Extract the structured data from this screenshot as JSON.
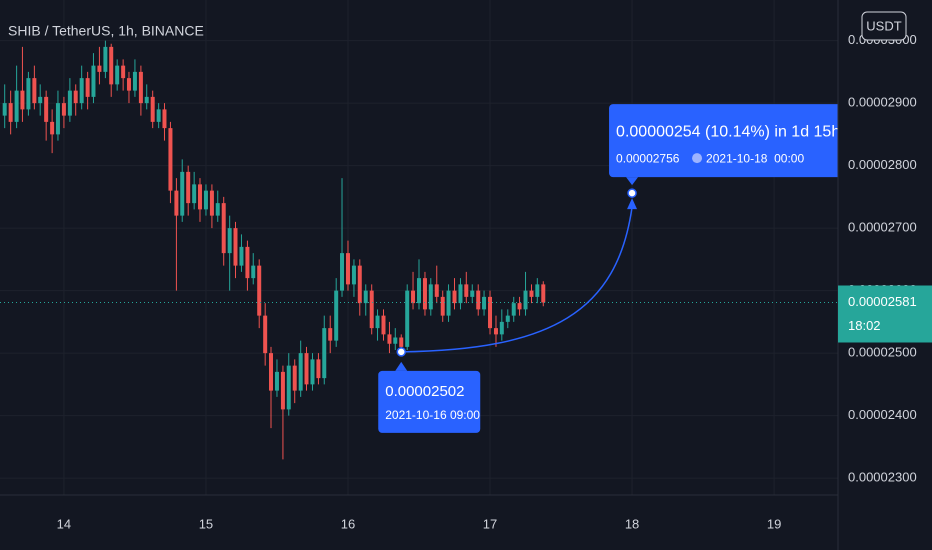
{
  "chart_data": {
    "type": "candlestick",
    "title": "SHIB / TetherUS, 1h, BINANCE",
    "currency_button": "USDT",
    "colors": {
      "up": "#26a69a",
      "down": "#ef5350",
      "measure": "#2962ff"
    },
    "grid": true,
    "xlim": [
      13.55,
      19.45
    ],
    "xticks": [
      14,
      15,
      16,
      17,
      18,
      19
    ],
    "ylim": [
      2.273e-05,
      3.065e-05
    ],
    "yticks": [
      {
        "value": 2.3e-05,
        "label": "0.00002300"
      },
      {
        "value": 2.4e-05,
        "label": "0.00002400"
      },
      {
        "value": 2.5e-05,
        "label": "0.00002500"
      },
      {
        "value": 2.6e-05,
        "label": "0.00002600"
      },
      {
        "value": 2.7e-05,
        "label": "0.00002700"
      },
      {
        "value": 2.8e-05,
        "label": "0.00002800"
      },
      {
        "value": 2.9e-05,
        "label": "0.00002900"
      },
      {
        "value": 3e-05,
        "label": "0.00003000"
      }
    ],
    "x": [
      13.583,
      13.625,
      13.667,
      13.708,
      13.75,
      13.792,
      13.833,
      13.875,
      13.917,
      13.958,
      14,
      14.042,
      14.083,
      14.125,
      14.167,
      14.208,
      14.25,
      14.292,
      14.333,
      14.375,
      14.417,
      14.458,
      14.5,
      14.542,
      14.583,
      14.625,
      14.667,
      14.708,
      14.75,
      14.792,
      14.833,
      14.875,
      14.917,
      14.958,
      15,
      15.042,
      15.083,
      15.125,
      15.167,
      15.208,
      15.25,
      15.292,
      15.333,
      15.375,
      15.417,
      15.458,
      15.5,
      15.542,
      15.583,
      15.625,
      15.667,
      15.708,
      15.75,
      15.792,
      15.833,
      15.875,
      15.917,
      15.958,
      16,
      16.042,
      16.083,
      16.125,
      16.167,
      16.208,
      16.25,
      16.292,
      16.333,
      16.375,
      16.417,
      16.458,
      16.5,
      16.542,
      16.583,
      16.625,
      16.667,
      16.708,
      16.75,
      16.792,
      16.833,
      16.875,
      16.917,
      16.958,
      17,
      17.042,
      17.083,
      17.125,
      17.167,
      17.208,
      17.25,
      17.292,
      17.333,
      17.375
    ],
    "ohlc": [
      [
        2.88e-05,
        2.93e-05,
        2.86e-05,
        2.9e-05
      ],
      [
        2.9e-05,
        2.92e-05,
        2.85e-05,
        2.87e-05
      ],
      [
        2.87e-05,
        2.96e-05,
        2.86e-05,
        2.92e-05
      ],
      [
        2.92e-05,
        2.99e-05,
        2.87e-05,
        2.89e-05
      ],
      [
        2.89e-05,
        2.95e-05,
        2.88e-05,
        2.94e-05
      ],
      [
        2.94e-05,
        2.96e-05,
        2.89e-05,
        2.9e-05
      ],
      [
        2.9e-05,
        2.93e-05,
        2.88e-05,
        2.91e-05
      ],
      [
        2.91e-05,
        2.92e-05,
        2.84e-05,
        2.87e-05
      ],
      [
        2.87e-05,
        2.89e-05,
        2.82e-05,
        2.85e-05
      ],
      [
        2.85e-05,
        2.92e-05,
        2.84e-05,
        2.9e-05
      ],
      [
        2.9e-05,
        2.91e-05,
        2.86e-05,
        2.88e-05
      ],
      [
        2.88e-05,
        2.94e-05,
        2.87e-05,
        2.92e-05
      ],
      [
        2.92e-05,
        2.93e-05,
        2.88e-05,
        2.9e-05
      ],
      [
        2.9e-05,
        2.96e-05,
        2.89e-05,
        2.94e-05
      ],
      [
        2.94e-05,
        2.95e-05,
        2.89e-05,
        2.91e-05
      ],
      [
        2.91e-05,
        2.98e-05,
        2.9e-05,
        2.96e-05
      ],
      [
        2.96e-05,
        2.99e-05,
        2.93e-05,
        2.95e-05
      ],
      [
        2.95e-05,
        3e-05,
        2.94e-05,
        2.99e-05
      ],
      [
        2.99e-05,
        2.995e-05,
        2.91e-05,
        2.93e-05
      ],
      [
        2.93e-05,
        2.97e-05,
        2.92e-05,
        2.96e-05
      ],
      [
        2.96e-05,
        2.97e-05,
        2.92e-05,
        2.94e-05
      ],
      [
        2.94e-05,
        2.95e-05,
        2.9e-05,
        2.92e-05
      ],
      [
        2.92e-05,
        2.97e-05,
        2.91e-05,
        2.95e-05
      ],
      [
        2.95e-05,
        2.96e-05,
        2.88e-05,
        2.9e-05
      ],
      [
        2.9e-05,
        2.93e-05,
        2.89e-05,
        2.91e-05
      ],
      [
        2.91e-05,
        2.92e-05,
        2.86e-05,
        2.87e-05
      ],
      [
        2.87e-05,
        2.9e-05,
        2.86e-05,
        2.89e-05
      ],
      [
        2.89e-05,
        2.9e-05,
        2.84e-05,
        2.86e-05
      ],
      [
        2.86e-05,
        2.87e-05,
        2.74e-05,
        2.76e-05
      ],
      [
        2.76e-05,
        2.78e-05,
        2.6e-05,
        2.72e-05
      ],
      [
        2.72e-05,
        2.81e-05,
        2.71e-05,
        2.79e-05
      ],
      [
        2.79e-05,
        2.8e-05,
        2.72e-05,
        2.74e-05
      ],
      [
        2.74e-05,
        2.79e-05,
        2.73e-05,
        2.77e-05
      ],
      [
        2.77e-05,
        2.78e-05,
        2.71e-05,
        2.73e-05
      ],
      [
        2.73e-05,
        2.77e-05,
        2.72e-05,
        2.76e-05
      ],
      [
        2.76e-05,
        2.77e-05,
        2.7e-05,
        2.72e-05
      ],
      [
        2.72e-05,
        2.76e-05,
        2.71e-05,
        2.74e-05
      ],
      [
        2.74e-05,
        2.75e-05,
        2.64e-05,
        2.66e-05
      ],
      [
        2.66e-05,
        2.72e-05,
        2.6e-05,
        2.7e-05
      ],
      [
        2.7e-05,
        2.71e-05,
        2.62e-05,
        2.64e-05
      ],
      [
        2.64e-05,
        2.69e-05,
        2.63e-05,
        2.67e-05
      ],
      [
        2.67e-05,
        2.68e-05,
        2.6e-05,
        2.62e-05
      ],
      [
        2.62e-05,
        2.66e-05,
        2.61e-05,
        2.64e-05
      ],
      [
        2.64e-05,
        2.65e-05,
        2.54e-05,
        2.56e-05
      ],
      [
        2.56e-05,
        2.58e-05,
        2.48e-05,
        2.5e-05
      ],
      [
        2.5e-05,
        2.51e-05,
        2.38e-05,
        2.44e-05
      ],
      [
        2.44e-05,
        2.49e-05,
        2.43e-05,
        2.47e-05
      ],
      [
        2.47e-05,
        2.48e-05,
        2.33e-05,
        2.41e-05
      ],
      [
        2.41e-05,
        2.5e-05,
        2.4e-05,
        2.48e-05
      ],
      [
        2.48e-05,
        2.49e-05,
        2.42e-05,
        2.44e-05
      ],
      [
        2.44e-05,
        2.52e-05,
        2.43e-05,
        2.5e-05
      ],
      [
        2.5e-05,
        2.51e-05,
        2.44e-05,
        2.45e-05
      ],
      [
        2.45e-05,
        2.5e-05,
        2.44e-05,
        2.49e-05
      ],
      [
        2.49e-05,
        2.5e-05,
        2.45e-05,
        2.46e-05
      ],
      [
        2.46e-05,
        2.56e-05,
        2.45e-05,
        2.54e-05
      ],
      [
        2.54e-05,
        2.56e-05,
        2.5e-05,
        2.52e-05
      ],
      [
        2.52e-05,
        2.62e-05,
        2.51e-05,
        2.6e-05
      ],
      [
        2.6e-05,
        2.78e-05,
        2.59e-05,
        2.66e-05
      ],
      [
        2.66e-05,
        2.68e-05,
        2.6e-05,
        2.61e-05
      ],
      [
        2.61e-05,
        2.65e-05,
        2.59e-05,
        2.64e-05
      ],
      [
        2.64e-05,
        2.65e-05,
        2.56e-05,
        2.58e-05
      ],
      [
        2.58e-05,
        2.61e-05,
        2.56e-05,
        2.6e-05
      ],
      [
        2.6e-05,
        2.61e-05,
        2.53e-05,
        2.54e-05
      ],
      [
        2.54e-05,
        2.57e-05,
        2.52e-05,
        2.56e-05
      ],
      [
        2.56e-05,
        2.57e-05,
        2.52e-05,
        2.53e-05
      ],
      [
        2.53e-05,
        2.55e-05,
        2.5e-05,
        2.515e-05
      ],
      [
        2.515e-05,
        2.54e-05,
        2.505e-05,
        2.525e-05
      ],
      [
        2.525e-05,
        2.53e-05,
        2.502e-05,
        2.51e-05
      ],
      [
        2.51e-05,
        2.61e-05,
        2.505e-05,
        2.6e-05
      ],
      [
        2.6e-05,
        2.63e-05,
        2.57e-05,
        2.58e-05
      ],
      [
        2.58e-05,
        2.65e-05,
        2.57e-05,
        2.62e-05
      ],
      [
        2.62e-05,
        2.63e-05,
        2.56e-05,
        2.57e-05
      ],
      [
        2.57e-05,
        2.62e-05,
        2.56e-05,
        2.61e-05
      ],
      [
        2.61e-05,
        2.64e-05,
        2.58e-05,
        2.59e-05
      ],
      [
        2.59e-05,
        2.6e-05,
        2.55e-05,
        2.56e-05
      ],
      [
        2.56e-05,
        2.61e-05,
        2.55e-05,
        2.6e-05
      ],
      [
        2.6e-05,
        2.62e-05,
        2.57e-05,
        2.58e-05
      ],
      [
        2.58e-05,
        2.62e-05,
        2.57e-05,
        2.61e-05
      ],
      [
        2.61e-05,
        2.63e-05,
        2.58e-05,
        2.59e-05
      ],
      [
        2.59e-05,
        2.61e-05,
        2.58e-05,
        2.6e-05
      ],
      [
        2.6e-05,
        2.61e-05,
        2.56e-05,
        2.57e-05
      ],
      [
        2.57e-05,
        2.6e-05,
        2.56e-05,
        2.59e-05
      ],
      [
        2.59e-05,
        2.6e-05,
        2.53e-05,
        2.54e-05
      ],
      [
        2.54e-05,
        2.56e-05,
        2.51e-05,
        2.53e-05
      ],
      [
        2.53e-05,
        2.57e-05,
        2.52e-05,
        2.55e-05
      ],
      [
        2.55e-05,
        2.57e-05,
        2.54e-05,
        2.56e-05
      ],
      [
        2.56e-05,
        2.59e-05,
        2.55e-05,
        2.58e-05
      ],
      [
        2.58e-05,
        2.59e-05,
        2.56e-05,
        2.57e-05
      ],
      [
        2.57e-05,
        2.63e-05,
        2.56e-05,
        2.6e-05
      ],
      [
        2.6e-05,
        2.61e-05,
        2.58e-05,
        2.59e-05
      ],
      [
        2.59e-05,
        2.62e-05,
        2.58e-05,
        2.61e-05
      ],
      [
        2.61e-05,
        2.615e-05,
        2.575e-05,
        2.581e-05
      ]
    ],
    "current_price": {
      "value": 2.581e-05,
      "label": "0.00002581",
      "countdown": "18:02"
    },
    "measure": {
      "from": {
        "x": 16.375,
        "y": 2.502e-05,
        "price_label": "0.00002502",
        "time_label": "2021-10-16 09:00"
      },
      "to": {
        "x": 18,
        "y": 2.756e-05,
        "change_label": "0.00000254 (10.14%) in 1d 15h",
        "price_label": "0.00002756",
        "time_label": "2021-10-18  00:00"
      }
    }
  }
}
